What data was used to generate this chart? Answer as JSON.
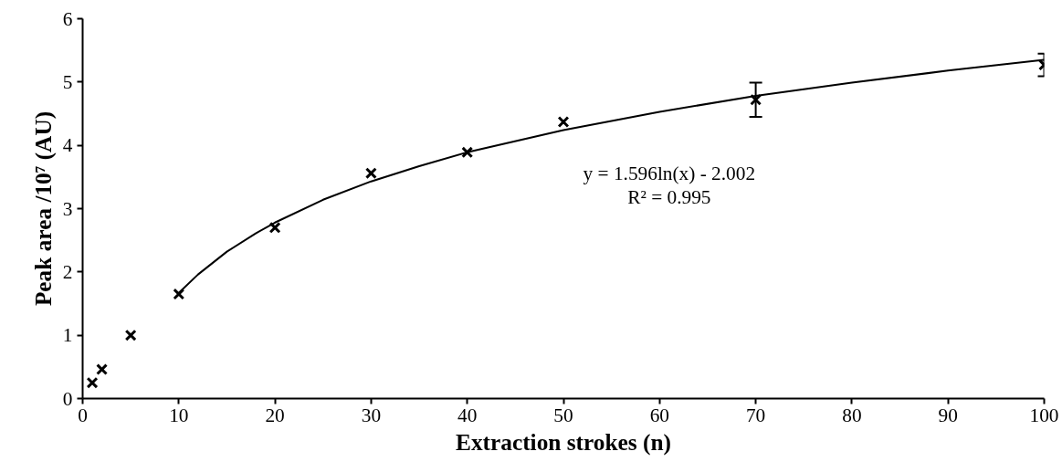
{
  "chart_data": {
    "type": "scatter",
    "xlabel": "Extraction strokes (n)",
    "ylabel": "Peak area /10⁷ (AU)",
    "xlim": [
      0,
      100
    ],
    "ylim": [
      0,
      6
    ],
    "xticks": [
      0,
      10,
      20,
      30,
      40,
      50,
      60,
      70,
      80,
      90,
      100
    ],
    "yticks": [
      0,
      1,
      2,
      3,
      4,
      5,
      6
    ],
    "grid": false,
    "annotations": [
      "y = 1.596ln(x) - 2.002\nR² = 0.995"
    ],
    "series": [
      {
        "color": "#000000",
        "marker": "cross",
        "x": [
          1,
          2,
          5,
          10,
          20,
          30,
          40,
          50,
          70,
          100
        ],
        "values": [
          0.25,
          0.46,
          1.0,
          1.65,
          2.7,
          3.56,
          3.89,
          4.37,
          4.72,
          5.27
        ],
        "errors": [
          null,
          null,
          null,
          null,
          null,
          null,
          null,
          null,
          0.27,
          0.18
        ]
      },
      {
        "type": "line",
        "color": "#000000",
        "line_style": "solid",
        "x": [
          10,
          12,
          15,
          18,
          20,
          25,
          30,
          35,
          40,
          50,
          60,
          70,
          80,
          90,
          100
        ],
        "values": [
          1.67,
          1.96,
          2.32,
          2.61,
          2.78,
          3.14,
          3.43,
          3.67,
          3.89,
          4.24,
          4.53,
          4.78,
          4.99,
          5.18,
          5.35
        ]
      }
    ]
  }
}
